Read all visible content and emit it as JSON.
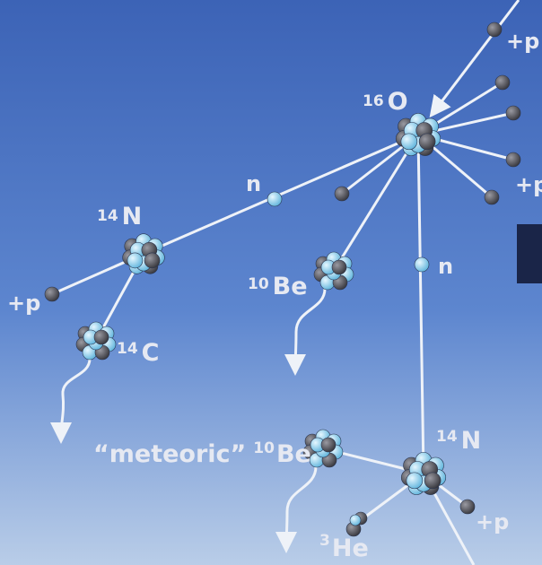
{
  "nuclei": [
    {
      "mass": "16",
      "symbol": "O"
    },
    {
      "mass": "14",
      "symbol": "N"
    },
    {
      "mass": "10",
      "symbol": "Be"
    },
    {
      "mass": "14",
      "symbol": "C"
    },
    {
      "mass": "14",
      "symbol": "N"
    },
    {
      "mass": "3",
      "symbol": "He"
    }
  ],
  "meteoric_label": "“meteoric”",
  "meteoric_nucleus": {
    "mass": "10",
    "symbol": "Be"
  },
  "particles": [
    "+p",
    "+p",
    "n",
    "+p",
    "n",
    "+p"
  ]
}
